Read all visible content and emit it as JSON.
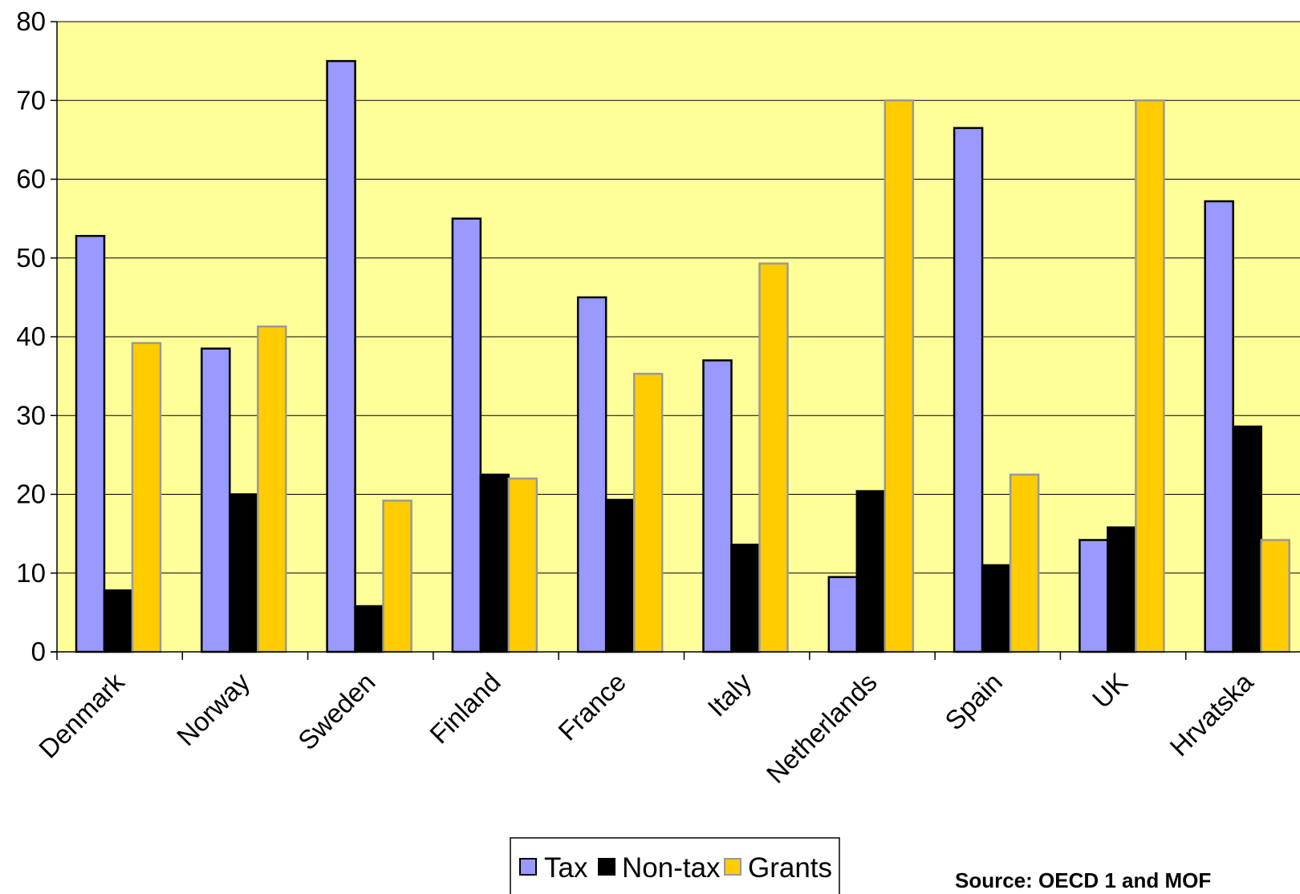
{
  "chart_data": {
    "type": "bar",
    "categories": [
      "Denmark",
      "Norway",
      "Sweden",
      "Finland",
      "France",
      "Italy",
      "Netherlands",
      "Spain",
      "UK",
      "Hrvatska"
    ],
    "series": [
      {
        "name": "Tax",
        "color": "#9999ff",
        "stroke": "#000000",
        "values": [
          52.8,
          38.5,
          75,
          55,
          45,
          37,
          9.5,
          66.5,
          14.2,
          57.2
        ]
      },
      {
        "name": "Non-tax",
        "color": "#000000",
        "stroke": "#000000",
        "values": [
          7.8,
          20,
          5.8,
          22.5,
          19.3,
          13.6,
          20.4,
          11,
          15.8,
          28.6
        ]
      },
      {
        "name": "Grants",
        "color": "#ffcc00",
        "stroke": "#999999",
        "values": [
          39.2,
          41.3,
          19.2,
          22,
          35.3,
          49.3,
          70,
          22.5,
          70,
          14.2
        ]
      }
    ],
    "ylim": [
      0,
      80
    ],
    "yticks": [
      0,
      10,
      20,
      30,
      40,
      50,
      60,
      70,
      80
    ],
    "grid": true,
    "plot_background": "#ffff99",
    "legend_position": "bottom",
    "source": "Source: OECD 1 and MOF"
  }
}
